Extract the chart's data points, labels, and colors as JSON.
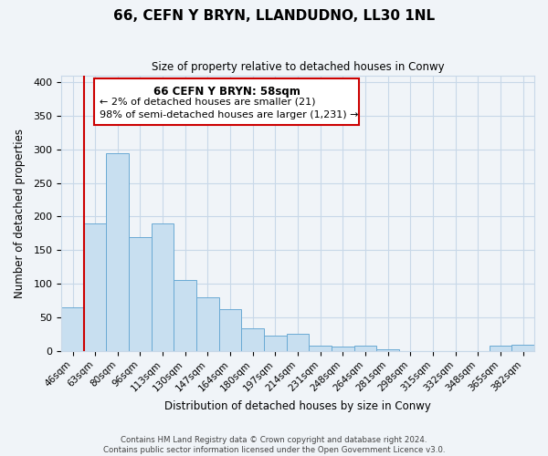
{
  "title": "66, CEFN Y BRYN, LLANDUDNO, LL30 1NL",
  "subtitle": "Size of property relative to detached houses in Conwy",
  "xlabel": "Distribution of detached houses by size in Conwy",
  "ylabel": "Number of detached properties",
  "footer_line1": "Contains HM Land Registry data © Crown copyright and database right 2024.",
  "footer_line2": "Contains public sector information licensed under the Open Government Licence v3.0.",
  "categories": [
    "46sqm",
    "63sqm",
    "80sqm",
    "96sqm",
    "113sqm",
    "130sqm",
    "147sqm",
    "164sqm",
    "180sqm",
    "197sqm",
    "214sqm",
    "231sqm",
    "248sqm",
    "264sqm",
    "281sqm",
    "298sqm",
    "315sqm",
    "332sqm",
    "348sqm",
    "365sqm",
    "382sqm"
  ],
  "values": [
    65,
    190,
    295,
    170,
    190,
    105,
    80,
    62,
    33,
    22,
    25,
    8,
    6,
    8,
    2,
    0,
    0,
    0,
    0,
    7,
    9
  ],
  "bar_color": "#c8dff0",
  "bar_edge_color": "#6aaad4",
  "marker_line_color": "#cc0000",
  "ylim": [
    0,
    410
  ],
  "yticks": [
    0,
    50,
    100,
    150,
    200,
    250,
    300,
    350,
    400
  ],
  "annotation_title": "66 CEFN Y BRYN: 58sqm",
  "annotation_line2": "← 2% of detached houses are smaller (21)",
  "annotation_line3": "98% of semi-detached houses are larger (1,231) →",
  "bg_color": "#f0f4f8",
  "grid_color": "#c8d8e8"
}
